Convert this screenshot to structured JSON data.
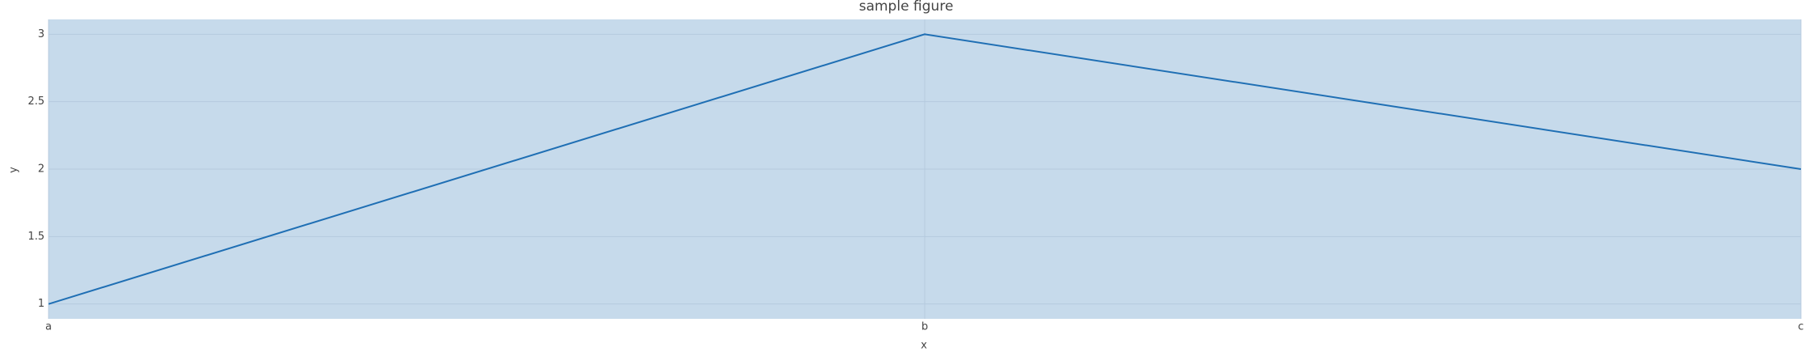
{
  "chart_data": {
    "type": "line",
    "title": "sample figure",
    "x_label": "x",
    "y_label": "y",
    "categories": [
      "a",
      "b",
      "c"
    ],
    "series": [
      {
        "name": "y",
        "color": "#1f6fb4",
        "values": [
          1,
          3,
          2
        ]
      }
    ],
    "ylim": [
      0.89,
      3.11
    ],
    "yticks": [
      1,
      1.5,
      2,
      2.5,
      3
    ],
    "grid": true,
    "background": "#c6daeb"
  }
}
